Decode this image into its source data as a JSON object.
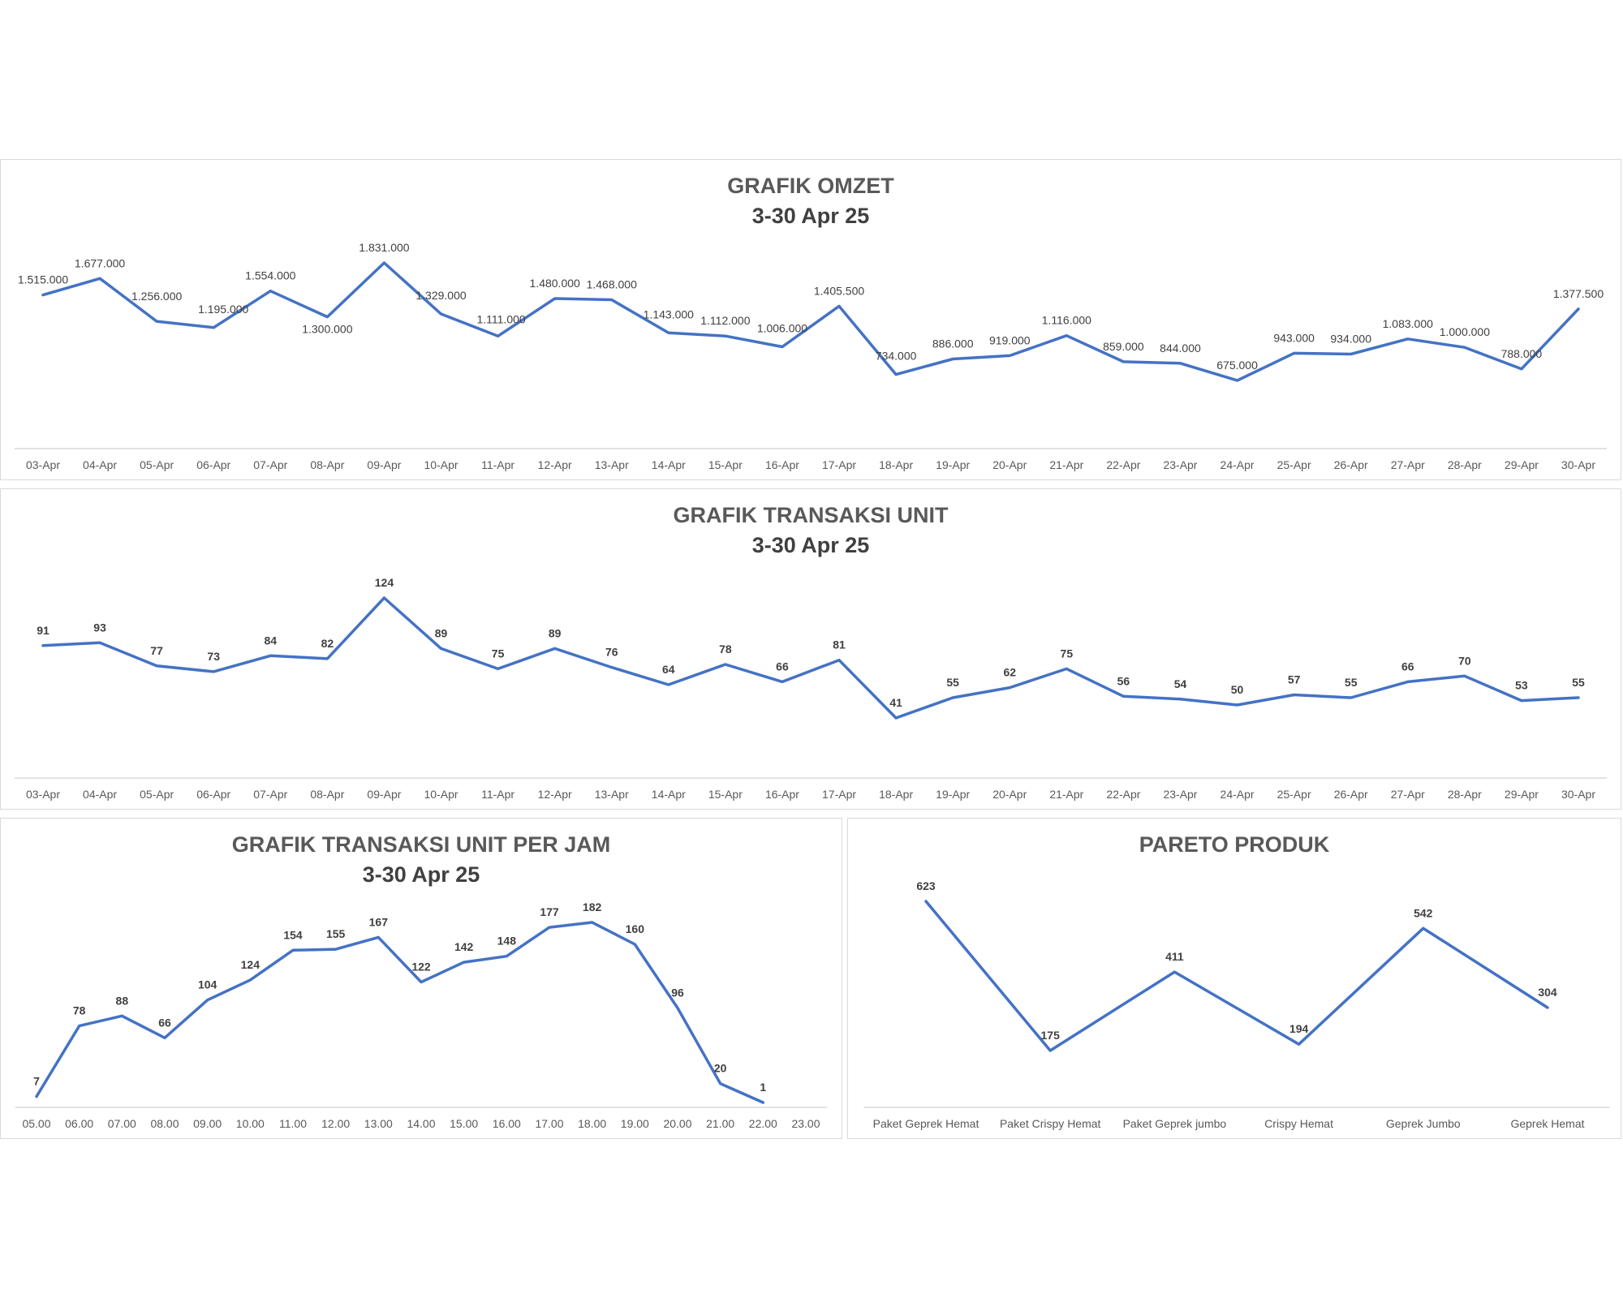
{
  "colors": {
    "line": "#4472c4",
    "axis": "#d9d9d9",
    "tick_text": "#595959",
    "label_text": "#404040",
    "title_text": "#595959"
  },
  "charts": {
    "omzet": {
      "title": "GRAFIK OMZET",
      "subtitle": "3-30 Apr 25"
    },
    "unit": {
      "title": "GRAFIK TRANSAKSI UNIT",
      "subtitle": "3-30 Apr 25"
    },
    "jam": {
      "title": "GRAFIK TRANSAKSI UNIT PER JAM",
      "subtitle": "3-30 Apr 25"
    },
    "pareto": {
      "title": "PARETO PRODUK",
      "subtitle": ""
    }
  },
  "chart_data": [
    {
      "id": "omzet",
      "type": "line",
      "title": "GRAFIK OMZET",
      "subtitle": "3-30 Apr 25",
      "categories": [
        "03-Apr",
        "04-Apr",
        "05-Apr",
        "06-Apr",
        "07-Apr",
        "08-Apr",
        "09-Apr",
        "10-Apr",
        "11-Apr",
        "12-Apr",
        "13-Apr",
        "14-Apr",
        "15-Apr",
        "16-Apr",
        "17-Apr",
        "18-Apr",
        "19-Apr",
        "20-Apr",
        "21-Apr",
        "22-Apr",
        "23-Apr",
        "24-Apr",
        "25-Apr",
        "26-Apr",
        "27-Apr",
        "28-Apr",
        "29-Apr",
        "30-Apr"
      ],
      "values": [
        1515000,
        1677000,
        1256000,
        1195000,
        1554000,
        1300000,
        1831000,
        1329000,
        1111000,
        1480000,
        1468000,
        1143000,
        1112000,
        1006000,
        1405500,
        734000,
        886000,
        919000,
        1116000,
        859000,
        844000,
        675000,
        943000,
        934000,
        1083000,
        1000000,
        788000,
        1377500
      ],
      "data_labels": [
        "1.515.000",
        "1.677.000",
        "1.256.000",
        "1.195.000",
        "1.554.000",
        "1.300.000",
        "1.831.000",
        "1.329.000",
        "1.111.000",
        "1.480.000",
        "1.468.000",
        "1.143.000",
        "1.112.000",
        "1.006.000",
        "1.405.500",
        "734.000",
        "886.000",
        "919.000",
        "1.116.000",
        "859.000",
        "844.000",
        "675.000",
        "943.000",
        "934.000",
        "1.083.000",
        "1.000.000",
        "788.000",
        "1.377.500"
      ],
      "ylim": [
        0,
        2000000
      ],
      "grid": false,
      "legend": "none"
    },
    {
      "id": "unit",
      "type": "line",
      "title": "GRAFIK TRANSAKSI UNIT",
      "subtitle": "3-30 Apr 25",
      "categories": [
        "03-Apr",
        "04-Apr",
        "05-Apr",
        "06-Apr",
        "07-Apr",
        "08-Apr",
        "09-Apr",
        "10-Apr",
        "11-Apr",
        "12-Apr",
        "13-Apr",
        "14-Apr",
        "15-Apr",
        "16-Apr",
        "17-Apr",
        "18-Apr",
        "19-Apr",
        "20-Apr",
        "21-Apr",
        "22-Apr",
        "23-Apr",
        "24-Apr",
        "25-Apr",
        "26-Apr",
        "27-Apr",
        "28-Apr",
        "29-Apr",
        "30-Apr"
      ],
      "values": [
        91,
        93,
        77,
        73,
        84,
        82,
        124,
        89,
        75,
        89,
        76,
        64,
        78,
        66,
        81,
        41,
        55,
        62,
        75,
        56,
        54,
        50,
        57,
        55,
        66,
        70,
        53,
        55
      ],
      "data_labels": [
        "91",
        "93",
        "77",
        "73",
        "84",
        "82",
        "124",
        "89",
        "75",
        "89",
        "76",
        "64",
        "78",
        "66",
        "81",
        "41",
        "55",
        "62",
        "75",
        "56",
        "54",
        "50",
        "57",
        "55",
        "66",
        "70",
        "53",
        "55"
      ],
      "ylim": [
        0,
        140
      ],
      "grid": false,
      "legend": "none"
    },
    {
      "id": "jam",
      "type": "line",
      "title": "GRAFIK TRANSAKSI UNIT PER JAM",
      "subtitle": "3-30 Apr 25",
      "categories": [
        "05.00",
        "06.00",
        "07.00",
        "08.00",
        "09.00",
        "10.00",
        "11.00",
        "12.00",
        "13.00",
        "14.00",
        "15.00",
        "16.00",
        "17.00",
        "18.00",
        "19.00",
        "20.00",
        "21.00",
        "22.00",
        "23.00"
      ],
      "values": [
        7,
        78,
        88,
        66,
        104,
        124,
        154,
        155,
        167,
        122,
        142,
        148,
        177,
        182,
        160,
        96,
        20,
        1,
        null
      ],
      "data_labels": [
        "7",
        "78",
        "88",
        "66",
        "104",
        "124",
        "154",
        "155",
        "167",
        "122",
        "142",
        "148",
        "177",
        "182",
        "160",
        "96",
        "20",
        "1",
        ""
      ],
      "ylim": [
        0,
        200
      ],
      "grid": false,
      "legend": "none"
    },
    {
      "id": "pareto",
      "type": "line",
      "title": "PARETO PRODUK",
      "categories": [
        "Paket Geprek Hemat",
        "Paket Crispy Hemat",
        "Paket Geprek jumbo",
        "Crispy Hemat",
        "Geprek Jumbo",
        "Geprek Hemat"
      ],
      "values": [
        623,
        175,
        411,
        194,
        542,
        304
      ],
      "data_labels": [
        "623",
        "175",
        "411",
        "194",
        "542",
        "304"
      ],
      "ylim": [
        0,
        700
      ],
      "grid": false,
      "legend": "none"
    }
  ]
}
